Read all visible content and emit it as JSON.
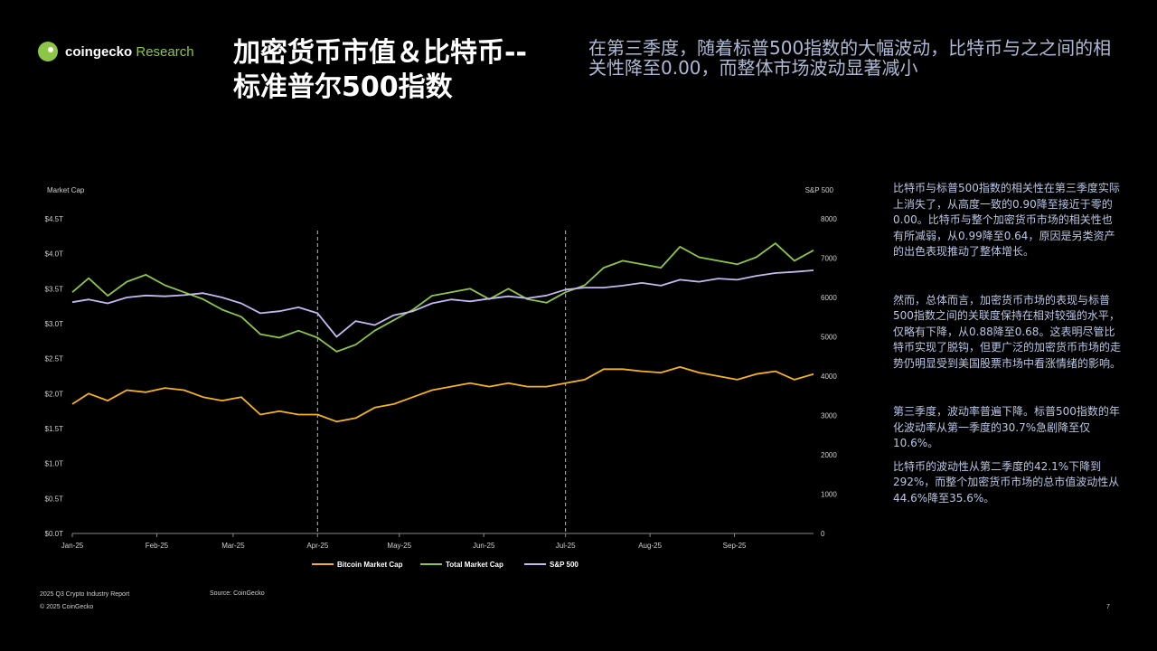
{
  "brand": {
    "name": "coingecko",
    "suffix": "Research"
  },
  "title_line1": "加密货币市值＆比特币--",
  "title_line2": "标准普尔500指数",
  "subtitle": "在第三季度，随着标普500指数的大幅波动，比特币与之之间的相关性降至0.00，而整体市场波动显著减小",
  "paragraphs": [
    "比特币与标普500指数的相关性在第三季度实际上消失了，从高度一致的0.90降至接近于零的0.00。比特币与整个加密货币市场的相关性也有所减弱，从0.99降至0.64，原因是另类资产的出色表现推动了整体增长。",
    "然而，总体而言，加密货币市场的表现与标普500指数之间的关联度保持在相对较强的水平，仅略有下降，从0.88降至0.68。这表明尽管比特币实现了脱钩，但更广泛的加密货币市场的走势仍明显受到美国股票市场中看涨情绪的影响。",
    "第三季度，波动率普遍下降。标普500指数的年化波动率从第一季度的30.7%急剧降至仅10.6%。",
    "比特币的波动性从第二季度的42.1%下降到292%，而整个加密货币市场的总市值波动性从44.6%降至35.6%。"
  ],
  "footer": {
    "report": "2025 Q3 Crypto Industry Report",
    "copyright": "© 2025 CoinGecko",
    "source": "Source: CoinGecko",
    "page": "7"
  },
  "colors": {
    "bitcoin": "#f5b31b",
    "total": "#8dc647",
    "sp500": "#c5b8f0",
    "axis_text": "#cfcfcf"
  },
  "chart_data": {
    "type": "line",
    "y_left_label": "Market Cap",
    "y_right_label": "S&P 500",
    "y_left_range": [
      0,
      4.5
    ],
    "y_right_range": [
      0,
      8000
    ],
    "y_left_ticks": [
      "$0.0T",
      "$0.5T",
      "$1.0T",
      "$1.5T",
      "$2.0T",
      "$2.5T",
      "$3.0T",
      "$3.5T",
      "$4.0T",
      "$4.5T"
    ],
    "y_right_ticks": [
      "0",
      "1000",
      "2000",
      "3000",
      "4000",
      "5000",
      "6000",
      "7000",
      "8000"
    ],
    "x_range": [
      "2025-01-01",
      "2025-09-30"
    ],
    "x_ticks": [
      {
        "label": "Jan-25",
        "date": "2025-01-01"
      },
      {
        "label": "Feb-25",
        "date": "2025-02-01"
      },
      {
        "label": "Mar-25",
        "date": "2025-03-01"
      },
      {
        "label": "Apr-25",
        "date": "2025-04-01"
      },
      {
        "label": "May-25",
        "date": "2025-05-01"
      },
      {
        "label": "Jun-25",
        "date": "2025-06-01"
      },
      {
        "label": "Jul-25",
        "date": "2025-07-01"
      },
      {
        "label": "Aug-25",
        "date": "2025-08-01"
      },
      {
        "label": "Sep-25",
        "date": "2025-09-01"
      }
    ],
    "vertical_markers": [
      "2025-04-01",
      "2025-07-01"
    ],
    "grid": false,
    "legend_position": "bottom",
    "series": [
      {
        "name": "Bitcoin Market Cap",
        "axis": "left",
        "points": [
          [
            "2025-01-01",
            1.85
          ],
          [
            "2025-01-07",
            2.0
          ],
          [
            "2025-01-14",
            1.9
          ],
          [
            "2025-01-21",
            2.05
          ],
          [
            "2025-01-28",
            2.02
          ],
          [
            "2025-02-04",
            2.08
          ],
          [
            "2025-02-11",
            2.05
          ],
          [
            "2025-02-18",
            1.95
          ],
          [
            "2025-02-25",
            1.9
          ],
          [
            "2025-03-04",
            1.95
          ],
          [
            "2025-03-11",
            1.7
          ],
          [
            "2025-03-18",
            1.75
          ],
          [
            "2025-03-25",
            1.7
          ],
          [
            "2025-04-01",
            1.7
          ],
          [
            "2025-04-08",
            1.6
          ],
          [
            "2025-04-15",
            1.65
          ],
          [
            "2025-04-22",
            1.8
          ],
          [
            "2025-04-29",
            1.85
          ],
          [
            "2025-05-06",
            1.95
          ],
          [
            "2025-05-13",
            2.05
          ],
          [
            "2025-05-20",
            2.1
          ],
          [
            "2025-05-27",
            2.15
          ],
          [
            "2025-06-03",
            2.1
          ],
          [
            "2025-06-10",
            2.15
          ],
          [
            "2025-06-17",
            2.1
          ],
          [
            "2025-06-24",
            2.1
          ],
          [
            "2025-07-01",
            2.15
          ],
          [
            "2025-07-08",
            2.2
          ],
          [
            "2025-07-15",
            2.35
          ],
          [
            "2025-07-22",
            2.35
          ],
          [
            "2025-07-29",
            2.32
          ],
          [
            "2025-08-05",
            2.3
          ],
          [
            "2025-08-12",
            2.38
          ],
          [
            "2025-08-19",
            2.3
          ],
          [
            "2025-08-26",
            2.25
          ],
          [
            "2025-09-02",
            2.2
          ],
          [
            "2025-09-09",
            2.28
          ],
          [
            "2025-09-16",
            2.32
          ],
          [
            "2025-09-23",
            2.2
          ],
          [
            "2025-09-30",
            2.28
          ]
        ]
      },
      {
        "name": "Total Market Cap",
        "axis": "left",
        "points": [
          [
            "2025-01-01",
            3.45
          ],
          [
            "2025-01-07",
            3.65
          ],
          [
            "2025-01-14",
            3.4
          ],
          [
            "2025-01-21",
            3.6
          ],
          [
            "2025-01-28",
            3.7
          ],
          [
            "2025-02-04",
            3.55
          ],
          [
            "2025-02-11",
            3.45
          ],
          [
            "2025-02-18",
            3.35
          ],
          [
            "2025-02-25",
            3.2
          ],
          [
            "2025-03-04",
            3.1
          ],
          [
            "2025-03-11",
            2.85
          ],
          [
            "2025-03-18",
            2.8
          ],
          [
            "2025-03-25",
            2.9
          ],
          [
            "2025-04-01",
            2.8
          ],
          [
            "2025-04-08",
            2.6
          ],
          [
            "2025-04-15",
            2.7
          ],
          [
            "2025-04-22",
            2.9
          ],
          [
            "2025-04-29",
            3.05
          ],
          [
            "2025-05-06",
            3.2
          ],
          [
            "2025-05-13",
            3.4
          ],
          [
            "2025-05-20",
            3.45
          ],
          [
            "2025-05-27",
            3.5
          ],
          [
            "2025-06-03",
            3.35
          ],
          [
            "2025-06-10",
            3.5
          ],
          [
            "2025-06-17",
            3.35
          ],
          [
            "2025-06-24",
            3.3
          ],
          [
            "2025-07-01",
            3.45
          ],
          [
            "2025-07-08",
            3.55
          ],
          [
            "2025-07-15",
            3.8
          ],
          [
            "2025-07-22",
            3.9
          ],
          [
            "2025-07-29",
            3.85
          ],
          [
            "2025-08-05",
            3.8
          ],
          [
            "2025-08-12",
            4.1
          ],
          [
            "2025-08-19",
            3.95
          ],
          [
            "2025-08-26",
            3.9
          ],
          [
            "2025-09-02",
            3.85
          ],
          [
            "2025-09-09",
            3.95
          ],
          [
            "2025-09-16",
            4.15
          ],
          [
            "2025-09-23",
            3.9
          ],
          [
            "2025-09-30",
            4.05
          ]
        ]
      },
      {
        "name": "S&P 500",
        "axis": "right",
        "points": [
          [
            "2025-01-01",
            5880
          ],
          [
            "2025-01-07",
            5950
          ],
          [
            "2025-01-14",
            5850
          ],
          [
            "2025-01-21",
            6000
          ],
          [
            "2025-01-28",
            6050
          ],
          [
            "2025-02-04",
            6030
          ],
          [
            "2025-02-11",
            6060
          ],
          [
            "2025-02-18",
            6110
          ],
          [
            "2025-02-25",
            6000
          ],
          [
            "2025-03-04",
            5850
          ],
          [
            "2025-03-11",
            5600
          ],
          [
            "2025-03-18",
            5650
          ],
          [
            "2025-03-25",
            5750
          ],
          [
            "2025-04-01",
            5600
          ],
          [
            "2025-04-08",
            5000
          ],
          [
            "2025-04-15",
            5400
          ],
          [
            "2025-04-22",
            5300
          ],
          [
            "2025-04-29",
            5550
          ],
          [
            "2025-05-06",
            5650
          ],
          [
            "2025-05-13",
            5850
          ],
          [
            "2025-05-20",
            5950
          ],
          [
            "2025-05-27",
            5900
          ],
          [
            "2025-06-03",
            5970
          ],
          [
            "2025-06-10",
            6030
          ],
          [
            "2025-06-17",
            5980
          ],
          [
            "2025-06-24",
            6050
          ],
          [
            "2025-07-01",
            6200
          ],
          [
            "2025-07-08",
            6250
          ],
          [
            "2025-07-15",
            6250
          ],
          [
            "2025-07-22",
            6300
          ],
          [
            "2025-07-29",
            6370
          ],
          [
            "2025-08-05",
            6300
          ],
          [
            "2025-08-12",
            6450
          ],
          [
            "2025-08-19",
            6400
          ],
          [
            "2025-08-26",
            6480
          ],
          [
            "2025-09-02",
            6450
          ],
          [
            "2025-09-09",
            6550
          ],
          [
            "2025-09-16",
            6620
          ],
          [
            "2025-09-23",
            6650
          ],
          [
            "2025-09-30",
            6690
          ]
        ]
      }
    ]
  }
}
